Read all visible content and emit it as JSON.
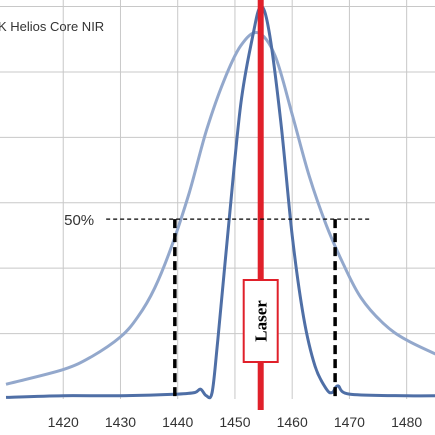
{
  "chart_data": {
    "type": "line",
    "title": "",
    "xlabel": "",
    "ylabel": "",
    "xlim": [
      1410,
      1486
    ],
    "ylim": [
      0,
      1.22
    ],
    "x_ticks": [
      "1420",
      "1430",
      "1440",
      "1450",
      "1460",
      "1470",
      "1480"
    ],
    "grid": true,
    "legend": {
      "text": "K Helios Core NIR",
      "placement": "top-left"
    },
    "colors": {
      "wide": "#93a8cc",
      "narrow": "#4f6fa6",
      "laser": "#e0202a",
      "grid": "#c8c8c8",
      "dash": "#000000"
    },
    "series": [
      {
        "curve": "wide",
        "x": [
          1410,
          1420,
          1425,
          1430,
          1433,
          1436,
          1439,
          1442,
          1445,
          1448,
          1451,
          1454,
          1457,
          1460,
          1463,
          1466,
          1469,
          1472,
          1476,
          1480,
          1486
        ],
        "y": [
          0.045,
          0.09,
          0.13,
          0.19,
          0.25,
          0.34,
          0.47,
          0.63,
          0.82,
          0.97,
          1.08,
          1.12,
          1.05,
          0.87,
          0.68,
          0.53,
          0.41,
          0.31,
          0.23,
          0.18,
          0.13
        ]
      },
      {
        "curve": "narrow",
        "x": [
          1410,
          1420,
          1430,
          1440,
          1443,
          1444,
          1445,
          1446,
          1447,
          1449,
          1451,
          1453,
          1454.5,
          1456,
          1458,
          1460,
          1462,
          1464,
          1466,
          1467,
          1468,
          1470,
          1480,
          1486
        ],
        "y": [
          0.005,
          0.01,
          0.01,
          0.015,
          0.02,
          0.03,
          0.01,
          0.02,
          0.18,
          0.55,
          0.9,
          1.1,
          1.2,
          1.12,
          0.85,
          0.5,
          0.25,
          0.1,
          0.03,
          0.02,
          0.04,
          0.015,
          0.01,
          0.01
        ]
      }
    ],
    "laser": {
      "label": "Laser",
      "x": 1454.5
    },
    "half_max": {
      "label": "50%",
      "y": 0.55,
      "line_x": [
        1427.5,
        1473.5
      ],
      "drops_x": [
        1439.5,
        1467.5
      ]
    }
  }
}
